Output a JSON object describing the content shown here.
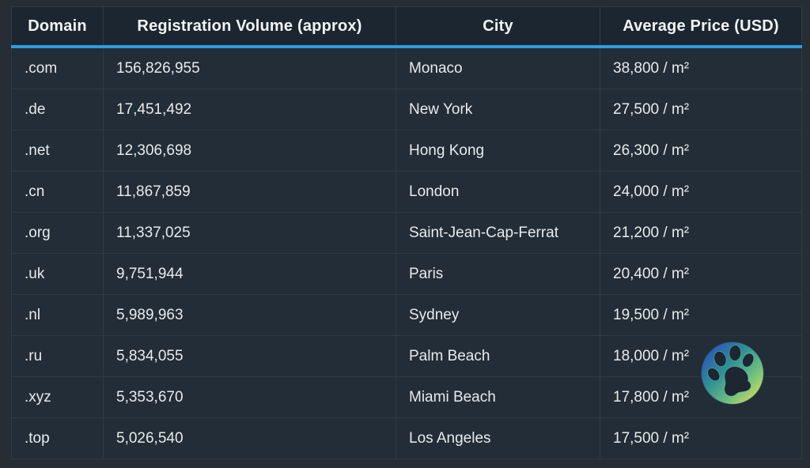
{
  "chart_data": {
    "type": "table",
    "columns": [
      "Domain",
      "Registration Volume (approx)",
      "City",
      "Average Price (USD)"
    ],
    "column_keys": [
      "domain",
      "volume",
      "city",
      "price"
    ],
    "rows": [
      [
        ".com",
        "156,826,955",
        "Monaco",
        "38,800 / m²"
      ],
      [
        ".de",
        "17,451,492",
        "New York",
        "27,500 / m²"
      ],
      [
        ".net",
        "12,306,698",
        "Hong Kong",
        "26,300 / m²"
      ],
      [
        ".cn",
        "11,867,859",
        "London",
        "24,000 / m²"
      ],
      [
        ".org",
        "11,337,025",
        "Saint-Jean-Cap-Ferrat",
        "21,200 / m²"
      ],
      [
        ".uk",
        "9,751,944",
        "Paris",
        "20,400 / m²"
      ],
      [
        ".nl",
        "5,989,963",
        "Sydney",
        "19,500 / m²"
      ],
      [
        ".ru",
        "5,834,055",
        "Palm Beach",
        "18,000 / m²"
      ],
      [
        ".xyz",
        "5,353,670",
        "Miami Beach",
        "17,800 / m²"
      ],
      [
        ".top",
        "5,026,540",
        "Los Angeles",
        "17,500 / m²"
      ]
    ],
    "layout": {
      "header_align": "center",
      "body_align": "left",
      "grid": true
    }
  },
  "colors": {
    "page_bg": "#262d35",
    "header_bg": "#1c2631",
    "cell_bg": "#232d37",
    "border": "#2e3a46",
    "accent_blue": "#2d9ce0",
    "header_text": "#f2f5f7",
    "body_text": "#e6ebee",
    "badge_gradient": [
      "#2b3fc7",
      "#2e8f96",
      "#6fbf7e",
      "#f5e850"
    ]
  },
  "logo": {
    "name": "paw-badge",
    "icon": "paw-icon"
  }
}
